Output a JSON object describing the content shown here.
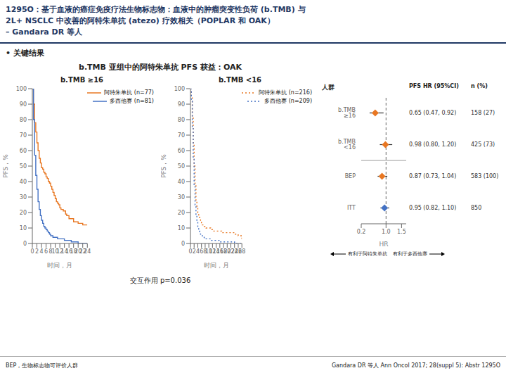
{
  "title": [
    "1295O：基于血液的癌症免疫疗法生物标志物：血液中的肿瘤突变性负荷 (b.TMB) 与",
    "2L+ NSCLC 中改善的阿特朱单抗 (atezo) 疗效相关（POPLAR 和 OAK）",
    "– Gandara DR 等人"
  ],
  "subtitle": "b.TMB 亚组中的阿特朱单抗 PFS 获益：OAK",
  "annotations": [
    "• 关键结果",
    "交互作用 p=0.036",
    "BEP，生物标志物可评价人群",
    "Gandara DR 等人 Ann Oncol 2017; 28(suppl 5): Abstr 1295O"
  ],
  "title_color": "#1F3864",
  "chart_data": [
    {
      "type": "step",
      "title": "b.TMB ≥16",
      "x_label": "时间，月",
      "y_label": "PFS，%",
      "xlim": [
        0,
        24
      ],
      "xticks": [
        0,
        2,
        4,
        6,
        8,
        10,
        12,
        14,
        16,
        18,
        20,
        22,
        24
      ],
      "ylim": [
        0,
        100
      ],
      "yticks": [
        0,
        10,
        20,
        30,
        40,
        50,
        60,
        70,
        80,
        90,
        100
      ],
      "grid": false,
      "legend": "upper right",
      "series": [
        {
          "name": "阿特朱单抗 (n=77)",
          "color": "#E87722",
          "line_style": "solid",
          "x": [
            0,
            0.5,
            1,
            1.5,
            2,
            2.5,
            3,
            3.5,
            4,
            4.5,
            5,
            5.5,
            6,
            6.5,
            7,
            7.5,
            8,
            8.5,
            9,
            9.5,
            10,
            10.5,
            11,
            11.5,
            12,
            12.5,
            13,
            13.5,
            14,
            14.5,
            15,
            16,
            17,
            18,
            19,
            20,
            21,
            22,
            23,
            24
          ],
          "values": [
            100,
            90,
            78,
            72,
            65,
            60,
            55,
            52,
            49,
            48,
            46,
            45,
            43,
            42,
            40,
            39,
            37,
            35,
            33,
            31,
            29,
            27,
            26,
            25,
            23,
            22,
            22,
            21,
            21,
            19,
            18,
            16,
            16,
            14,
            14,
            13,
            13,
            12,
            12,
            12
          ]
        },
        {
          "name": "多西他赛 (n=81)",
          "color": "#4472C4",
          "line_style": "solid",
          "x": [
            0,
            0.5,
            1,
            1.5,
            2,
            2.5,
            3,
            3.5,
            4,
            4.5,
            5,
            5.5,
            6,
            6.5,
            7,
            7.5,
            8,
            8.5,
            9,
            9.5,
            10,
            11,
            12,
            13,
            14,
            15,
            16,
            17,
            18,
            19,
            20,
            22,
            24
          ],
          "values": [
            100,
            80,
            57,
            44,
            35,
            27,
            22,
            18,
            15,
            13,
            11,
            10,
            9,
            8,
            7,
            6,
            5,
            5,
            4,
            4,
            4,
            3,
            3,
            3,
            2,
            2,
            2,
            1,
            1,
            1,
            0,
            0,
            0
          ]
        }
      ]
    },
    {
      "type": "step",
      "title": "b.TMB <16",
      "x_label": "时间，月",
      "y_label": "PFS，%",
      "xlim": [
        0,
        28
      ],
      "xticks": [
        0,
        2,
        4,
        6,
        8,
        10,
        12,
        14,
        16,
        18,
        20,
        22,
        24,
        26,
        28
      ],
      "ylim": [
        0,
        100
      ],
      "yticks": [
        0,
        10,
        20,
        30,
        40,
        50,
        60,
        70,
        80,
        90,
        100
      ],
      "grid": false,
      "legend": "upper right",
      "series": [
        {
          "name": "阿特朱单抗 (n=216)",
          "color": "#E87722",
          "line_style": "dotted",
          "x": [
            0,
            0.5,
            1,
            1.5,
            2,
            2.5,
            3,
            3.5,
            4,
            4.5,
            5,
            5.5,
            6,
            6.5,
            7,
            7.5,
            8,
            8.5,
            9,
            9.5,
            10,
            11,
            12,
            13,
            14,
            15,
            16,
            17,
            18,
            19,
            20,
            21,
            22,
            24,
            26,
            28
          ],
          "values": [
            100,
            95,
            82,
            65,
            50,
            38,
            28,
            24,
            20,
            18,
            16,
            15,
            13,
            12,
            12,
            11,
            11,
            10,
            10,
            10,
            10,
            9,
            8,
            8,
            8,
            8,
            8,
            7,
            7,
            7,
            7,
            7,
            7,
            6,
            5,
            3
          ]
        },
        {
          "name": "多西他赛 (n=209)",
          "color": "#4472C4",
          "line_style": "dotted",
          "x": [
            0,
            0.5,
            1,
            1.5,
            2,
            2.5,
            3,
            3.5,
            4,
            4.5,
            5,
            5.5,
            6,
            6.5,
            7,
            7.5,
            8,
            8.5,
            9,
            9.5,
            10,
            11,
            12,
            13,
            14,
            15,
            16,
            18,
            20,
            22,
            24,
            26,
            28
          ],
          "values": [
            100,
            92,
            75,
            55,
            38,
            25,
            18,
            14,
            10,
            8,
            7,
            6,
            5,
            4,
            4,
            3,
            3,
            3,
            3,
            3,
            3,
            2,
            2,
            2,
            2,
            2,
            1,
            1,
            1,
            1,
            0,
            0,
            0
          ]
        }
      ]
    },
    {
      "type": "forest",
      "columns": [
        "人群",
        "PFS HR (95%CI)",
        "n (%)"
      ],
      "categories": [
        "b.TMB ≥16",
        "b.TMB <16",
        "BEP",
        "ITT"
      ],
      "values": [
        0.65,
        0.98,
        0.87,
        0.95
      ],
      "ci_low": [
        0.47,
        0.8,
        0.73,
        0.82
      ],
      "ci_high": [
        0.92,
        1.2,
        1.04,
        1.1
      ],
      "hr_text": [
        "0.65 (0.47, 0.92)",
        "0.98 (0.80, 1.20)",
        "0.87 (0.73, 1.04)",
        "0.95 (0.82, 1.10)"
      ],
      "n_text": [
        "158 (27)",
        "425 (73)",
        "583 (100)",
        "850"
      ],
      "colors": [
        "#E87722",
        "#E87722",
        "#E87722",
        "#4472C4"
      ],
      "marker": "diamond",
      "x_label": "HR",
      "xlim": [
        0.2,
        1.65
      ],
      "xticks": [
        0.2,
        {
          "value": 1.0,
          "label": "1.0"
        },
        1.5
      ],
      "ref_line": 1.0,
      "grid": false,
      "annotations": [
        "有利于阿特朱单抗",
        "有利于多西他赛"
      ]
    }
  ]
}
